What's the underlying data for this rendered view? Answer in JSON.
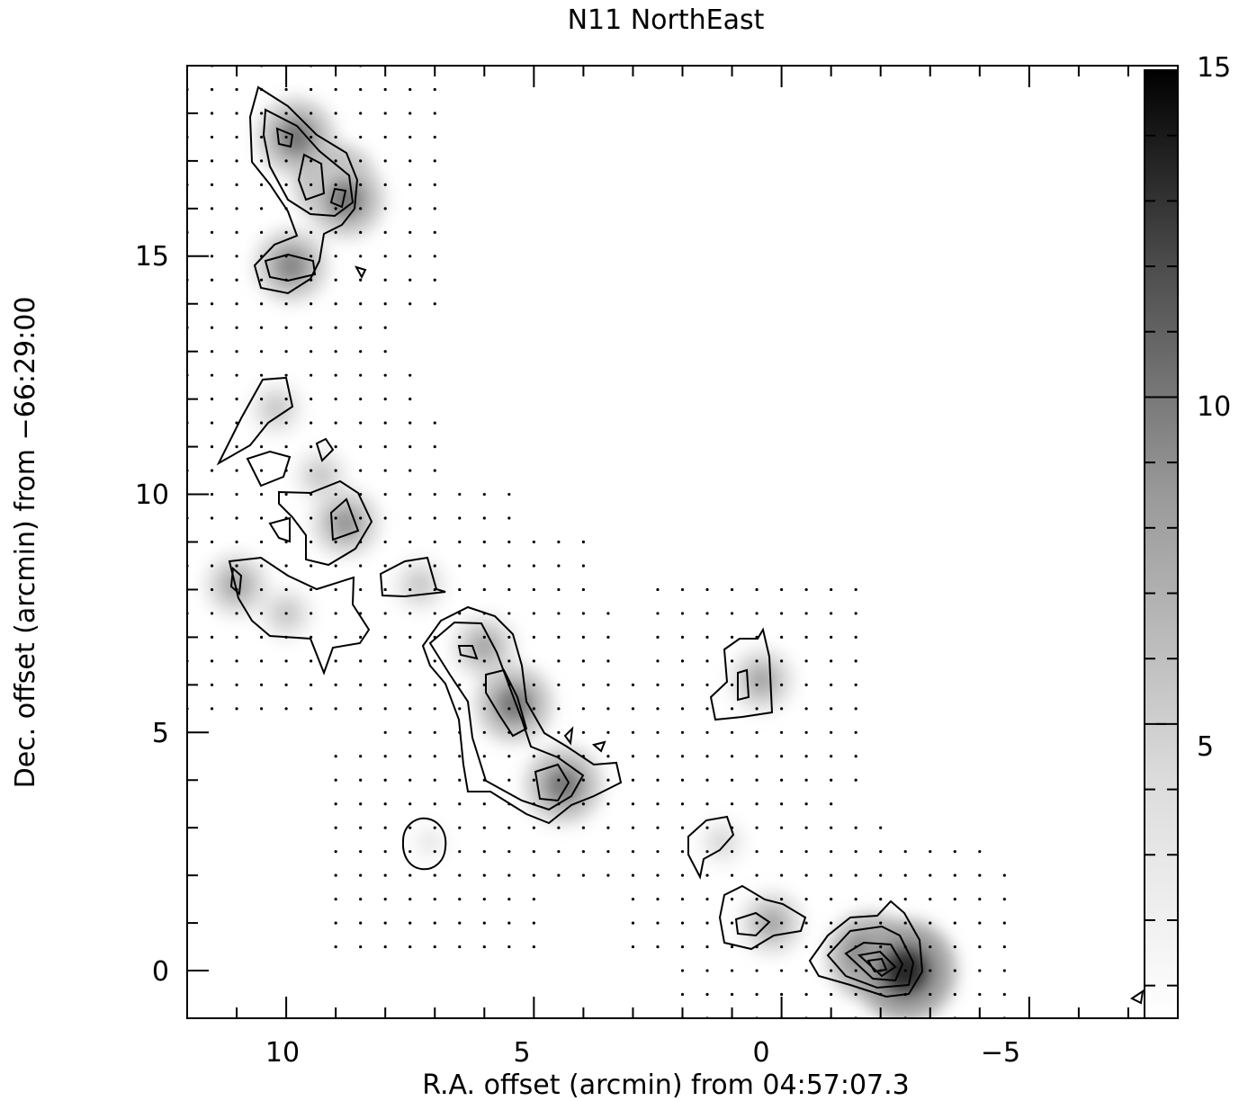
{
  "chart_data": {
    "type": "heatmap",
    "title": "N11 NorthEast",
    "xlabel": "R.A. offset (arcmin) from 04:57:07.3",
    "ylabel": "Dec. offset (arcmin) from −66:29:00",
    "xlim": [
      12,
      -8
    ],
    "ylim": [
      -1,
      19
    ],
    "xticks": [
      10,
      5,
      0,
      -5
    ],
    "xtick_labels": [
      "10",
      "5",
      "0",
      "−5"
    ],
    "yticks": [
      0,
      5,
      10,
      15
    ],
    "ytick_labels": [
      "0",
      "5",
      "10",
      "15"
    ],
    "colorbar": {
      "range": [
        0.5,
        15
      ],
      "ticks": [
        5,
        10,
        15
      ],
      "tick_labels": [
        "5",
        "10",
        "15"
      ],
      "colormap": "grayscale, white (low) to black (high)"
    },
    "contours": "black contour lines at several intensity levels",
    "sampled_positions": "dots mark observed grid positions",
    "emission_peaks": [
      {
        "x": 9.8,
        "y": 17.5,
        "value": 9
      },
      {
        "x": 9.0,
        "y": 16.5,
        "value": 10
      },
      {
        "x": 8.8,
        "y": 16.2,
        "value": 9
      },
      {
        "x": 9.9,
        "y": 14.8,
        "value": 8
      },
      {
        "x": 10.2,
        "y": 11.8,
        "value": 4
      },
      {
        "x": 9.3,
        "y": 10.4,
        "value": 4
      },
      {
        "x": 8.8,
        "y": 9.4,
        "value": 7
      },
      {
        "x": 10.0,
        "y": 7.5,
        "value": 4
      },
      {
        "x": 11.0,
        "y": 8.1,
        "value": 6
      },
      {
        "x": 7.3,
        "y": 8.1,
        "value": 4
      },
      {
        "x": 6.0,
        "y": 6.8,
        "value": 6
      },
      {
        "x": 5.4,
        "y": 5.6,
        "value": 9
      },
      {
        "x": 4.4,
        "y": 3.9,
        "value": 9
      },
      {
        "x": 7.1,
        "y": 2.7,
        "value": 2
      },
      {
        "x": 0.4,
        "y": 6.1,
        "value": 6
      },
      {
        "x": 1.2,
        "y": 2.7,
        "value": 3
      },
      {
        "x": 0.2,
        "y": 1.0,
        "value": 6
      },
      {
        "x": -1.8,
        "y": 0.3,
        "value": 11
      },
      {
        "x": -2.5,
        "y": 0.0,
        "value": 14
      }
    ]
  }
}
